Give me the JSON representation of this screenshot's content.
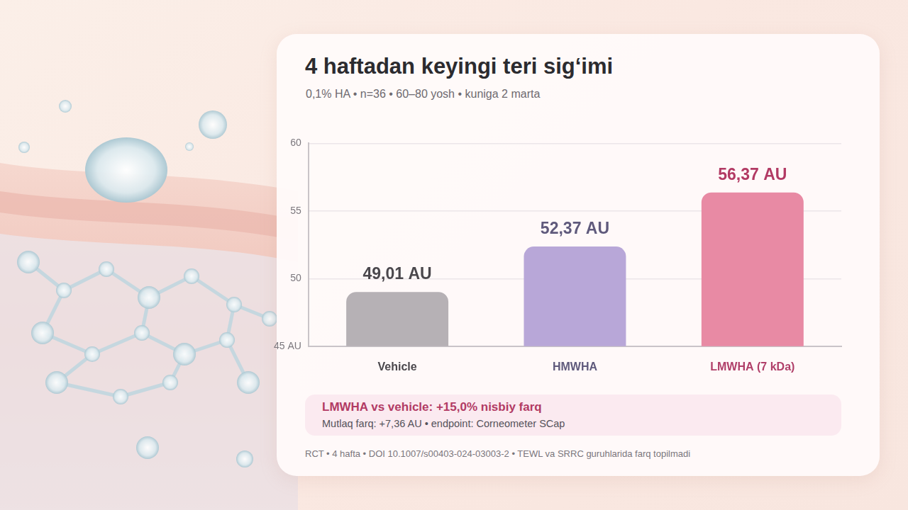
{
  "chart_data": {
    "type": "bar",
    "title": "4 haftadan keyingi teri sig‘imi",
    "subtitle": "0,1% HA • n=36 • 60–80 yosh • kuniga 2 marta",
    "categories": [
      "Vehicle",
      "HMWHA",
      "LMWHA (7 kDa)"
    ],
    "values": [
      49.01,
      52.37,
      56.37
    ],
    "value_labels": [
      "49,01 AU",
      "52,37 AU",
      "56,37 AU"
    ],
    "colors": [
      "#b6b1b5",
      "#b8a7d8",
      "#e88aa4"
    ],
    "ylim": [
      45,
      60
    ],
    "yticks": [
      {
        "value": 45,
        "label": "45 AU"
      },
      50,
      55,
      60
    ],
    "grid": true,
    "data_labels": true,
    "annotations": [
      "LMWHA vs vehicle: +15,0% nisbiy farq",
      "Mutlaq farq: +7,36 AU • endpoint: Corneometer SCap",
      "RCT • 4 hafta • DOI 10.1007/s00403-024-03003-2 • TEWL va SRRC guruhlarida farq topilmadi"
    ]
  }
}
